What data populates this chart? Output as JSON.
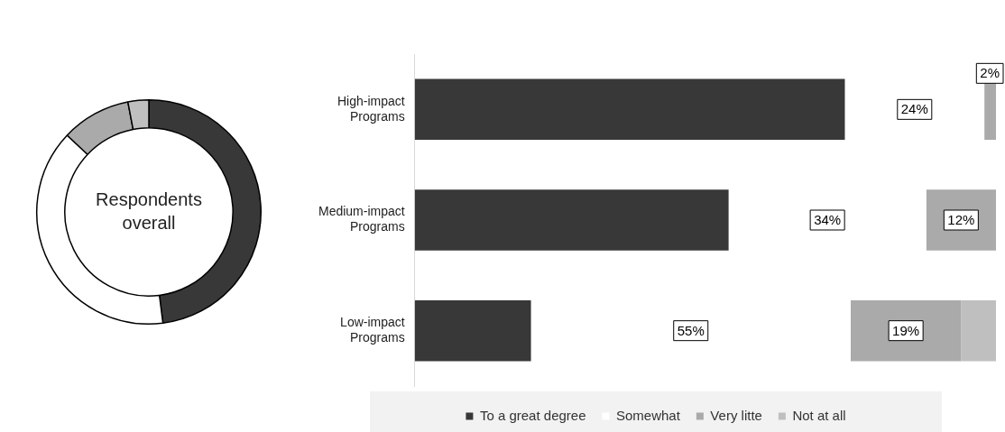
{
  "chart_data": [
    {
      "type": "donut",
      "categories": [
        null,
        null,
        null,
        null
      ],
      "values": [
        48,
        39,
        10,
        3
      ],
      "colors": [
        "#383838",
        "#ffffff",
        "#aaaaaa",
        "#bfbfbf"
      ],
      "annotations": [
        "Respondents overall"
      ],
      "legend": false
    },
    {
      "type": "bar",
      "orientation": "horizontal",
      "stacked": true,
      "categories": [
        "High-impact Programs",
        "Medium-impact Programs",
        "Low-impact Programs"
      ],
      "xlim": [
        0,
        100
      ],
      "tick_labels": "y",
      "legend": "bottom",
      "series": [
        {
          "name": "To a great degree",
          "color": "#383838",
          "values": [
            74,
            54,
            20
          ],
          "value_labels": [
            null,
            null,
            null
          ]
        },
        {
          "name": "Somewhat",
          "color": "#ffffff",
          "values": [
            24,
            34,
            55
          ],
          "value_labels": [
            "24%",
            "34%",
            "55%"
          ]
        },
        {
          "name": "Very litte",
          "color": "#aaaaaa",
          "values": [
            2,
            12,
            19
          ],
          "value_labels": [
            "2%",
            "12%",
            "19%"
          ]
        },
        {
          "name": "Not at all",
          "color": "#bfbfbf",
          "values": [
            0,
            0,
            6
          ],
          "value_labels": [
            null,
            null,
            null
          ]
        }
      ]
    }
  ]
}
